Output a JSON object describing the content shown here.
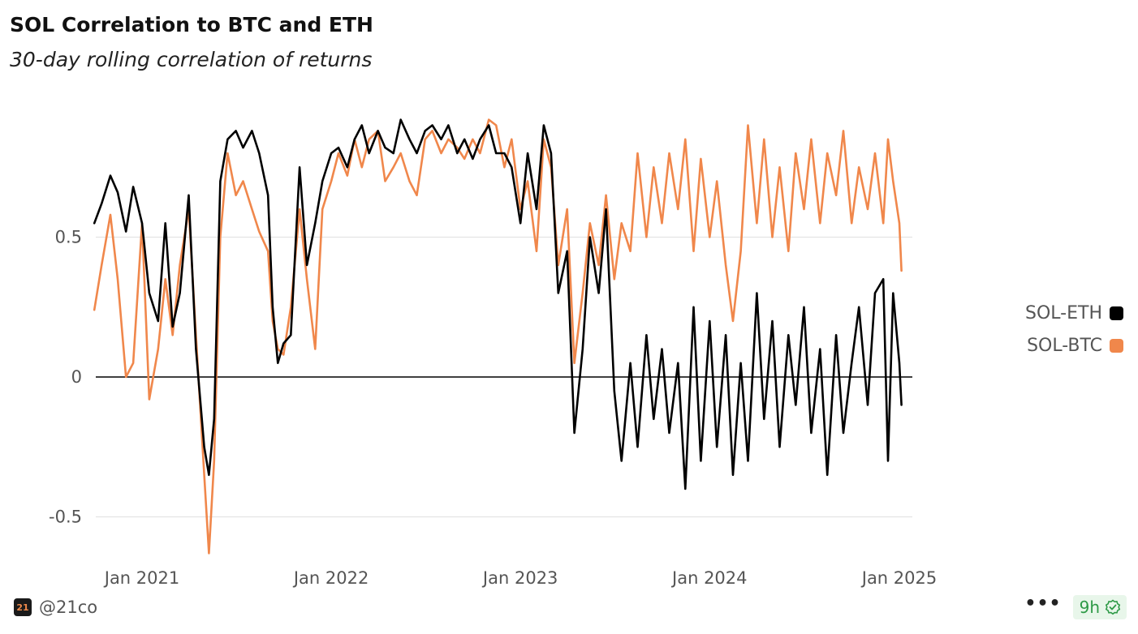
{
  "header": {
    "title": "SOL Correlation to BTC and ETH",
    "subtitle": "30-day rolling correlation of returns"
  },
  "footer": {
    "logo_text": "21",
    "handle": "@21co",
    "more_label": "•••",
    "age_badge": "9h",
    "verified_icon": "check-badge-icon"
  },
  "colors": {
    "sol_eth": "#000000",
    "sol_btc": "#f0874b",
    "grid": "#e3e3e3",
    "zero_line": "#000000",
    "badge_text": "#2e9a47"
  },
  "chart_data": {
    "type": "line",
    "title": "SOL Correlation to BTC and ETH",
    "subtitle": "30-day rolling correlation of returns",
    "xlabel": "",
    "ylabel": "",
    "x_ticks": [
      "Jan 2021",
      "Jan 2022",
      "Jan 2023",
      "Jan 2024",
      "Jan 2025"
    ],
    "y_ticks": [
      0.5,
      0,
      -0.5
    ],
    "y_tick_labels": [
      "0.5",
      "0",
      "-0.5"
    ],
    "ylim": [
      -0.63,
      0.95
    ],
    "xlim": [
      "2020-10-01",
      "2025-01-20"
    ],
    "grid": "horizontal",
    "legend_position": "right",
    "series": [
      {
        "name": "SOL-ETH",
        "color": "#000000",
        "points": [
          [
            "2020-10-01",
            0.55
          ],
          [
            "2020-10-15",
            0.62
          ],
          [
            "2020-11-01",
            0.72
          ],
          [
            "2020-11-15",
            0.66
          ],
          [
            "2020-12-01",
            0.52
          ],
          [
            "2020-12-15",
            0.68
          ],
          [
            "2021-01-01",
            0.55
          ],
          [
            "2021-01-15",
            0.3
          ],
          [
            "2021-02-01",
            0.2
          ],
          [
            "2021-02-15",
            0.55
          ],
          [
            "2021-03-01",
            0.18
          ],
          [
            "2021-03-15",
            0.3
          ],
          [
            "2021-04-01",
            0.65
          ],
          [
            "2021-04-15",
            0.1
          ],
          [
            "2021-05-01",
            -0.25
          ],
          [
            "2021-05-10",
            -0.35
          ],
          [
            "2021-05-20",
            -0.15
          ],
          [
            "2021-06-01",
            0.7
          ],
          [
            "2021-06-15",
            0.85
          ],
          [
            "2021-07-01",
            0.88
          ],
          [
            "2021-07-15",
            0.82
          ],
          [
            "2021-08-01",
            0.88
          ],
          [
            "2021-08-15",
            0.8
          ],
          [
            "2021-09-01",
            0.65
          ],
          [
            "2021-09-10",
            0.25
          ],
          [
            "2021-09-20",
            0.05
          ],
          [
            "2021-10-01",
            0.12
          ],
          [
            "2021-10-15",
            0.15
          ],
          [
            "2021-11-01",
            0.75
          ],
          [
            "2021-11-15",
            0.4
          ],
          [
            "2021-12-01",
            0.55
          ],
          [
            "2021-12-15",
            0.7
          ],
          [
            "2022-01-01",
            0.8
          ],
          [
            "2022-01-15",
            0.82
          ],
          [
            "2022-02-01",
            0.75
          ],
          [
            "2022-02-15",
            0.85
          ],
          [
            "2022-03-01",
            0.9
          ],
          [
            "2022-03-15",
            0.8
          ],
          [
            "2022-04-01",
            0.88
          ],
          [
            "2022-04-15",
            0.82
          ],
          [
            "2022-05-01",
            0.8
          ],
          [
            "2022-05-15",
            0.92
          ],
          [
            "2022-06-01",
            0.85
          ],
          [
            "2022-06-15",
            0.8
          ],
          [
            "2022-07-01",
            0.88
          ],
          [
            "2022-07-15",
            0.9
          ],
          [
            "2022-08-01",
            0.85
          ],
          [
            "2022-08-15",
            0.9
          ],
          [
            "2022-09-01",
            0.8
          ],
          [
            "2022-09-15",
            0.85
          ],
          [
            "2022-10-01",
            0.78
          ],
          [
            "2022-10-15",
            0.85
          ],
          [
            "2022-11-01",
            0.9
          ],
          [
            "2022-11-15",
            0.8
          ],
          [
            "2022-12-01",
            0.8
          ],
          [
            "2022-12-15",
            0.75
          ],
          [
            "2023-01-01",
            0.55
          ],
          [
            "2023-01-15",
            0.8
          ],
          [
            "2023-02-01",
            0.6
          ],
          [
            "2023-02-15",
            0.9
          ],
          [
            "2023-03-01",
            0.8
          ],
          [
            "2023-03-15",
            0.3
          ],
          [
            "2023-04-01",
            0.45
          ],
          [
            "2023-04-15",
            -0.2
          ],
          [
            "2023-05-01",
            0.1
          ],
          [
            "2023-05-15",
            0.5
          ],
          [
            "2023-06-01",
            0.3
          ],
          [
            "2023-06-15",
            0.6
          ],
          [
            "2023-07-01",
            -0.05
          ],
          [
            "2023-07-15",
            -0.3
          ],
          [
            "2023-08-01",
            0.05
          ],
          [
            "2023-08-15",
            -0.25
          ],
          [
            "2023-09-01",
            0.15
          ],
          [
            "2023-09-15",
            -0.15
          ],
          [
            "2023-10-01",
            0.1
          ],
          [
            "2023-10-15",
            -0.2
          ],
          [
            "2023-11-01",
            0.05
          ],
          [
            "2023-11-15",
            -0.4
          ],
          [
            "2023-12-01",
            0.25
          ],
          [
            "2023-12-15",
            -0.3
          ],
          [
            "2024-01-01",
            0.2
          ],
          [
            "2024-01-15",
            -0.25
          ],
          [
            "2024-02-01",
            0.15
          ],
          [
            "2024-02-15",
            -0.35
          ],
          [
            "2024-03-01",
            0.05
          ],
          [
            "2024-03-15",
            -0.3
          ],
          [
            "2024-04-01",
            0.3
          ],
          [
            "2024-04-15",
            -0.15
          ],
          [
            "2024-05-01",
            0.2
          ],
          [
            "2024-05-15",
            -0.25
          ],
          [
            "2024-06-01",
            0.15
          ],
          [
            "2024-06-15",
            -0.1
          ],
          [
            "2024-07-01",
            0.25
          ],
          [
            "2024-07-15",
            -0.2
          ],
          [
            "2024-08-01",
            0.1
          ],
          [
            "2024-08-15",
            -0.35
          ],
          [
            "2024-09-01",
            0.15
          ],
          [
            "2024-09-15",
            -0.2
          ],
          [
            "2024-10-01",
            0.05
          ],
          [
            "2024-10-15",
            0.25
          ],
          [
            "2024-11-01",
            -0.1
          ],
          [
            "2024-11-15",
            0.3
          ],
          [
            "2024-12-01",
            0.35
          ],
          [
            "2024-12-10",
            -0.3
          ],
          [
            "2024-12-20",
            0.3
          ],
          [
            "2025-01-01",
            0.05
          ],
          [
            "2025-01-05",
            -0.1
          ]
        ]
      },
      {
        "name": "SOL-BTC",
        "color": "#f0874b",
        "points": [
          [
            "2020-10-01",
            0.24
          ],
          [
            "2020-10-15",
            0.4
          ],
          [
            "2020-11-01",
            0.58
          ],
          [
            "2020-11-15",
            0.35
          ],
          [
            "2020-12-01",
            0.0
          ],
          [
            "2020-12-15",
            0.05
          ],
          [
            "2021-01-01",
            0.55
          ],
          [
            "2021-01-15",
            -0.08
          ],
          [
            "2021-02-01",
            0.1
          ],
          [
            "2021-02-15",
            0.35
          ],
          [
            "2021-03-01",
            0.15
          ],
          [
            "2021-03-15",
            0.4
          ],
          [
            "2021-04-01",
            0.6
          ],
          [
            "2021-04-15",
            0.15
          ],
          [
            "2021-05-01",
            -0.35
          ],
          [
            "2021-05-10",
            -0.63
          ],
          [
            "2021-05-20",
            -0.3
          ],
          [
            "2021-06-01",
            0.5
          ],
          [
            "2021-06-15",
            0.8
          ],
          [
            "2021-07-01",
            0.65
          ],
          [
            "2021-07-15",
            0.7
          ],
          [
            "2021-08-01",
            0.6
          ],
          [
            "2021-08-15",
            0.52
          ],
          [
            "2021-09-01",
            0.45
          ],
          [
            "2021-09-10",
            0.2
          ],
          [
            "2021-09-20",
            0.1
          ],
          [
            "2021-10-01",
            0.08
          ],
          [
            "2021-10-15",
            0.25
          ],
          [
            "2021-11-01",
            0.6
          ],
          [
            "2021-11-15",
            0.35
          ],
          [
            "2021-12-01",
            0.1
          ],
          [
            "2021-12-15",
            0.6
          ],
          [
            "2022-01-01",
            0.7
          ],
          [
            "2022-01-15",
            0.8
          ],
          [
            "2022-02-01",
            0.72
          ],
          [
            "2022-02-15",
            0.85
          ],
          [
            "2022-03-01",
            0.75
          ],
          [
            "2022-03-15",
            0.85
          ],
          [
            "2022-04-01",
            0.88
          ],
          [
            "2022-04-15",
            0.7
          ],
          [
            "2022-05-01",
            0.75
          ],
          [
            "2022-05-15",
            0.8
          ],
          [
            "2022-06-01",
            0.7
          ],
          [
            "2022-06-15",
            0.65
          ],
          [
            "2022-07-01",
            0.85
          ],
          [
            "2022-07-15",
            0.88
          ],
          [
            "2022-08-01",
            0.8
          ],
          [
            "2022-08-15",
            0.85
          ],
          [
            "2022-09-01",
            0.82
          ],
          [
            "2022-09-15",
            0.78
          ],
          [
            "2022-10-01",
            0.85
          ],
          [
            "2022-10-15",
            0.8
          ],
          [
            "2022-11-01",
            0.92
          ],
          [
            "2022-11-15",
            0.9
          ],
          [
            "2022-12-01",
            0.75
          ],
          [
            "2022-12-15",
            0.85
          ],
          [
            "2023-01-01",
            0.6
          ],
          [
            "2023-01-15",
            0.7
          ],
          [
            "2023-02-01",
            0.45
          ],
          [
            "2023-02-15",
            0.85
          ],
          [
            "2023-03-01",
            0.75
          ],
          [
            "2023-03-15",
            0.4
          ],
          [
            "2023-04-01",
            0.6
          ],
          [
            "2023-04-15",
            0.05
          ],
          [
            "2023-05-01",
            0.3
          ],
          [
            "2023-05-15",
            0.55
          ],
          [
            "2023-06-01",
            0.4
          ],
          [
            "2023-06-15",
            0.65
          ],
          [
            "2023-07-01",
            0.35
          ],
          [
            "2023-07-15",
            0.55
          ],
          [
            "2023-08-01",
            0.45
          ],
          [
            "2023-08-15",
            0.8
          ],
          [
            "2023-09-01",
            0.5
          ],
          [
            "2023-09-15",
            0.75
          ],
          [
            "2023-10-01",
            0.55
          ],
          [
            "2023-10-15",
            0.8
          ],
          [
            "2023-11-01",
            0.6
          ],
          [
            "2023-11-15",
            0.85
          ],
          [
            "2023-12-01",
            0.45
          ],
          [
            "2023-12-15",
            0.78
          ],
          [
            "2024-01-01",
            0.5
          ],
          [
            "2024-01-15",
            0.7
          ],
          [
            "2024-02-01",
            0.4
          ],
          [
            "2024-02-15",
            0.2
          ],
          [
            "2024-03-01",
            0.45
          ],
          [
            "2024-03-15",
            0.9
          ],
          [
            "2024-04-01",
            0.55
          ],
          [
            "2024-04-15",
            0.85
          ],
          [
            "2024-05-01",
            0.5
          ],
          [
            "2024-05-15",
            0.75
          ],
          [
            "2024-06-01",
            0.45
          ],
          [
            "2024-06-15",
            0.8
          ],
          [
            "2024-07-01",
            0.6
          ],
          [
            "2024-07-15",
            0.85
          ],
          [
            "2024-08-01",
            0.55
          ],
          [
            "2024-08-15",
            0.8
          ],
          [
            "2024-09-01",
            0.65
          ],
          [
            "2024-09-15",
            0.88
          ],
          [
            "2024-10-01",
            0.55
          ],
          [
            "2024-10-15",
            0.75
          ],
          [
            "2024-11-01",
            0.6
          ],
          [
            "2024-11-15",
            0.8
          ],
          [
            "2024-12-01",
            0.55
          ],
          [
            "2024-12-10",
            0.85
          ],
          [
            "2024-12-20",
            0.7
          ],
          [
            "2025-01-01",
            0.55
          ],
          [
            "2025-01-05",
            0.38
          ]
        ]
      }
    ]
  }
}
